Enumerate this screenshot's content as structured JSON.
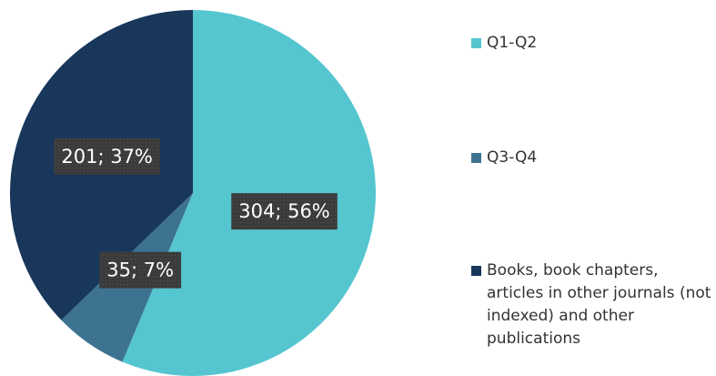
{
  "chart_data": {
    "type": "pie",
    "categories": [
      "Q1-Q2",
      "Q3-Q4",
      "Books, book chapters, articles in other journals (not indexed) and other publications"
    ],
    "values": [
      304,
      35,
      201
    ],
    "value_labels": [
      "304; 56%",
      "35; 7%",
      "201; 37%"
    ],
    "colors": [
      "#55c6d0",
      "#3d7391",
      "#18375a"
    ]
  }
}
